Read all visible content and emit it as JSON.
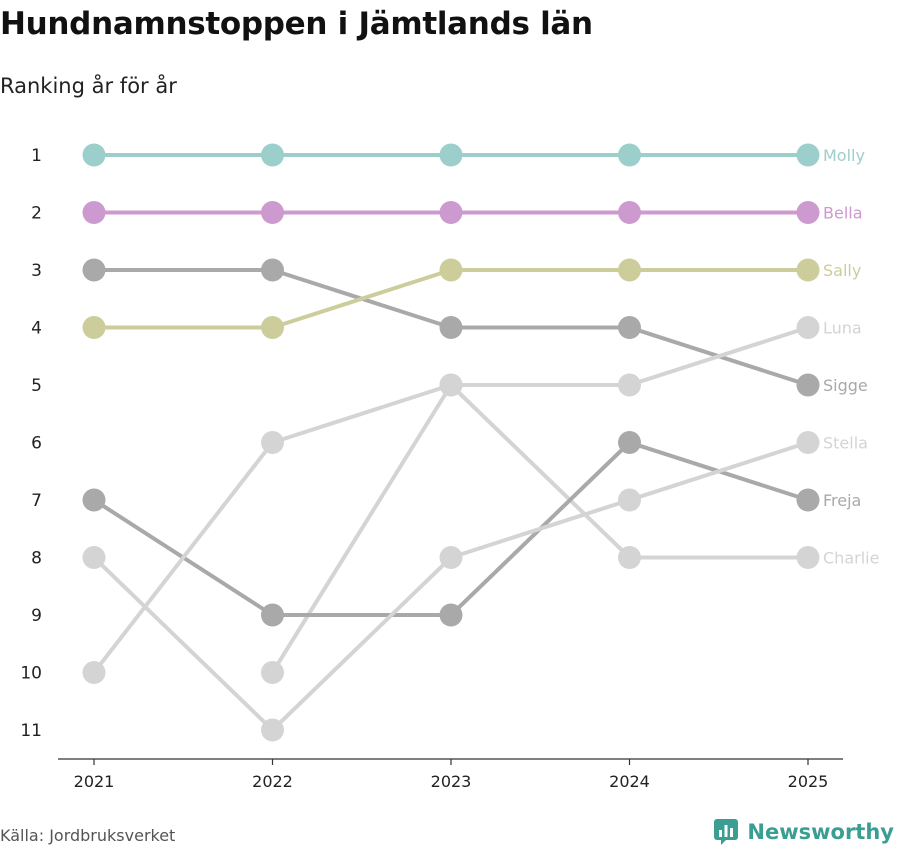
{
  "header": {
    "title": "Hundnamnstoppen i Jämtlands län",
    "subtitle": "Ranking år för år"
  },
  "footer": {
    "source": "Källa: Jordbruksverket",
    "brand": "Newsworthy"
  },
  "icons": {
    "brand": "newsworthy-logo-icon"
  },
  "chart_data": {
    "type": "line",
    "chart_subtype": "bump",
    "title": "Hundnamnstoppen i Jämtlands län",
    "subtitle": "Ranking år för år",
    "x": [
      "2021",
      "2022",
      "2023",
      "2024",
      "2025"
    ],
    "y_ticks": [
      1,
      2,
      3,
      4,
      5,
      6,
      7,
      8,
      9,
      10,
      11
    ],
    "ylim": [
      1,
      11
    ],
    "y_reversed": true,
    "grid": false,
    "legend": "none (series labelled at line ends)",
    "series": [
      {
        "name": "Molly",
        "values": [
          1,
          1,
          1,
          1,
          1
        ],
        "color": "#9ccfcc"
      },
      {
        "name": "Bella",
        "values": [
          2,
          2,
          2,
          2,
          2
        ],
        "color": "#cd9acf"
      },
      {
        "name": "Sally",
        "values": [
          4,
          4,
          3,
          3,
          3
        ],
        "color": "#cdcd9c"
      },
      {
        "name": "Luna",
        "values": [
          10,
          6,
          5,
          5,
          4
        ],
        "color": "#d4d4d4"
      },
      {
        "name": "Sigge",
        "values": [
          3,
          3,
          4,
          4,
          5
        ],
        "color": "#a9a9a9"
      },
      {
        "name": "Stella",
        "values": [
          8,
          11,
          8,
          7,
          6
        ],
        "color": "#d4d4d4"
      },
      {
        "name": "Freja",
        "values": [
          7,
          9,
          9,
          6,
          7
        ],
        "color": "#a9a9a9"
      },
      {
        "name": "Charlie",
        "values": [
          null,
          10,
          5,
          8,
          8
        ],
        "color": "#d4d4d4"
      }
    ]
  }
}
